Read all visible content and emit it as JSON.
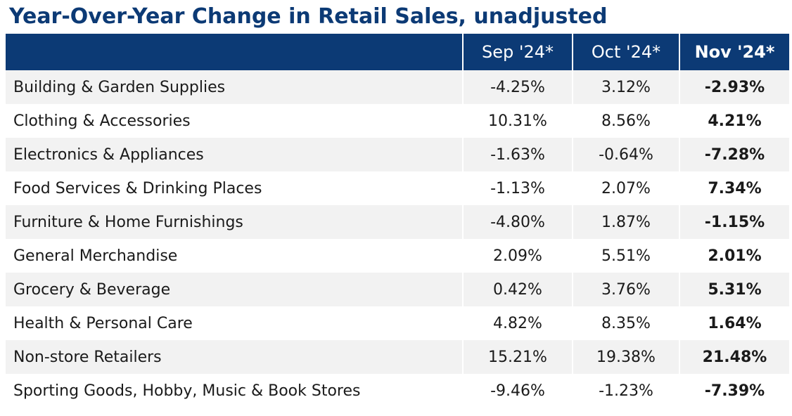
{
  "title": "Year-Over-Year Change in Retail Sales, unadjusted",
  "chart_data": {
    "type": "table",
    "title": "Year-Over-Year Change in Retail Sales, unadjusted",
    "columns": [
      "",
      "Sep '24*",
      "Oct '24*",
      "Nov '24*"
    ],
    "rows": [
      {
        "category": "Building & Garden Supplies",
        "sep": "-4.25%",
        "oct": "3.12%",
        "nov": "-2.93%"
      },
      {
        "category": "Clothing & Accessories",
        "sep": "10.31%",
        "oct": "8.56%",
        "nov": "4.21%"
      },
      {
        "category": "Electronics & Appliances",
        "sep": "-1.63%",
        "oct": "-0.64%",
        "nov": "-7.28%"
      },
      {
        "category": "Food Services & Drinking Places",
        "sep": "-1.13%",
        "oct": "2.07%",
        "nov": "7.34%"
      },
      {
        "category": "Furniture & Home Furnishings",
        "sep": "-4.80%",
        "oct": "1.87%",
        "nov": "-1.15%"
      },
      {
        "category": "General Merchandise",
        "sep": "2.09%",
        "oct": "5.51%",
        "nov": "2.01%"
      },
      {
        "category": "Grocery & Beverage",
        "sep": "0.42%",
        "oct": "3.76%",
        "nov": "5.31%"
      },
      {
        "category": "Health & Personal Care",
        "sep": "4.82%",
        "oct": "8.35%",
        "nov": "1.64%"
      },
      {
        "category": "Non-store Retailers",
        "sep": "15.21%",
        "oct": "19.38%",
        "nov": "21.48%"
      },
      {
        "category": "Sporting Goods, Hobby, Music & Book Stores",
        "sep": "-9.46%",
        "oct": "-1.23%",
        "nov": "-7.39%"
      }
    ]
  },
  "colors": {
    "header_bg": "#0c3a75",
    "title_text": "#0c3a75",
    "row_alt_bg": "#f2f2f2"
  }
}
